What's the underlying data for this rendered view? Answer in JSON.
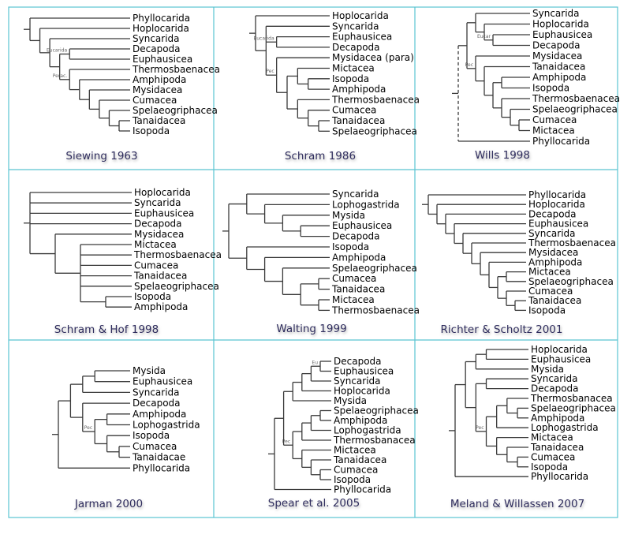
{
  "panels": [
    {
      "caption": "Siewing 1963",
      "tree": [
        "Phyllocarida",
        [
          "Hoplocarida",
          [
            "Syncarida",
            [
              {
                "label": "Eucarida",
                "children": [
                  "Decapoda",
                  "Euphausicea"
                ]
              },
              {
                "label": "Perac.",
                "children": [
                  "Thermosbaenacea",
                  [
                    "Amphipoda",
                    [
                      "Mysidacea",
                      [
                        "Cumacea",
                        [
                          "Spelaeogriphacea",
                          [
                            "Tanaidacea",
                            "Isopoda"
                          ]
                        ]
                      ]
                    ]
                  ]
                ]
              }
            ]
          ]
        ]
      ]
    },
    {
      "caption": "Schram 1986",
      "tree": [
        "Hoplocarida",
        [
          "Syncarida",
          {
            "label": "Eucarida",
            "children": [
              "Euphausicea",
              "Decapoda"
            ]
          },
          {
            "label": "Pec",
            "children": [
              "Mysidacea (para)",
              [
                [
                  "Mictacea",
                  [
                    "Isopoda",
                    "Amphipoda"
                  ]
                ],
                [
                  "Thermosbaenacea",
                  [
                    "Cumacea",
                    [
                      "Tanaidacea",
                      "Spelaeogriphacea"
                    ]
                  ]
                ]
              ]
            ]
          }
        ]
      ]
    },
    {
      "caption": "Wills 1998",
      "tree": [
        [
          [
            "Syncarida",
            [
              "Hoplocarida",
              {
                "label": "Eucar",
                "children": [
                  "Euphausicea",
                  "Decapoda"
                ]
              }
            ]
          ],
          {
            "label": "Pec",
            "children": [
              "Mysidacea",
              [
                "Tanaidacea",
                [
                  [
                    "Amphipoda",
                    "Isopoda"
                  ],
                  [
                    "Thermosbaenacea",
                    [
                      "Spelaeogriphacea",
                      [
                        "Cumacea",
                        "Mictacea"
                      ]
                    ]
                  ]
                ]
              ]
            ]
          }
        ],
        {
          "name": "Phyllocarida",
          "dashed": true
        }
      ]
    },
    {
      "caption": "Schram & Hof 1998",
      "tree": [
        "Hoplocarida",
        "Syncarida",
        "Euphausicea",
        "Decapoda",
        [
          "Mysidacea",
          [
            "Mictacea",
            "Thermosbaenacea",
            "Cumacea",
            "Tanaidacea",
            "Spelaeogriphacea",
            [
              "Isopoda",
              "Amphipoda"
            ]
          ]
        ]
      ]
    },
    {
      "caption": "Walting 1999",
      "tree": [
        [
          "Syncarida",
          [
            "Lophogastrida",
            [
              "Mysida",
              [
                "Euphausicea",
                "Decapoda"
              ]
            ]
          ]
        ],
        [
          "Isopoda",
          [
            "Amphipoda",
            [
              "Spelaeogriphacea",
              [
                [
                  "Cumacea",
                  "Tanaidacea"
                ],
                [
                  "Mictacea",
                  "Thermosbaenacea"
                ]
              ]
            ]
          ]
        ]
      ]
    },
    {
      "caption": "Richter & Scholtz 2001",
      "tree": [
        "Phyllocarida",
        [
          "Hoplocarida",
          [
            "Decapoda",
            [
              "Euphausicea",
              [
                "Syncarida",
                [
                  "Thermosbaenacea",
                  [
                    "Mysidacea",
                    [
                      "Amphipoda",
                      [
                        [
                          "Mictacea",
                          "Spelaeogriphacea"
                        ],
                        [
                          "Cumacea",
                          [
                            "Tanaidacea",
                            "Isopoda"
                          ]
                        ]
                      ]
                    ]
                  ]
                ]
              ]
            ]
          ]
        ]
      ]
    },
    {
      "caption": "Jarman 2000",
      "tree": [
        [
          [
            [
              "Mysida",
              "Euphausicea"
            ],
            "Syncarida"
          ],
          [
            "Decapoda",
            {
              "label": "Pec",
              "children": [
                [
                  "Amphipoda",
                  "Lophogastrida"
                ],
                [
                  "Isopoda",
                  [
                    "Cumacea",
                    "Tanaidacae"
                  ]
                ]
              ]
            }
          ]
        ],
        "Phyllocarida"
      ]
    },
    {
      "caption": "Spear et al. 2005",
      "tree": [
        [
          [
            [
              [
                {
                  "label": "Eu",
                  "children": [
                    "Decapoda",
                    "Euphausicea"
                  ]
                },
                "Syncarida"
              ],
              "Hoplocarida"
            ],
            "Mysida"
          ],
          {
            "label": "Pec",
            "children": [
              [
                [
                  [
                    "Spelaeogriphacea",
                    "Amphipoda"
                  ],
                  "Lophogastrida"
                ],
                "Thermosbanacea"
              ],
              [
                "Mictacea",
                [
                  "Tanaidacea",
                  [
                    "Cumacea",
                    "Isopoda"
                  ]
                ]
              ]
            ]
          }
        ],
        "Phyllocarida"
      ]
    },
    {
      "caption": "Meland & Willassen 2007",
      "tree": [
        [
          [
            [
              "Hoplocarida",
              "Euphausicea"
            ],
            "Mysida"
          ],
          [
            [
              "Syncarida",
              "Decapoda"
            ],
            {
              "label": "Pec",
              "children": [
                [
                  [
                    "Thermosbanacea",
                    [
                      "Spelaeogriphacea",
                      "Amphipoda"
                    ]
                  ],
                  "Lophogastrida"
                ],
                [
                  "Mictacea",
                  [
                    "Tanaidacea",
                    [
                      "Cumacea",
                      "Isopoda"
                    ]
                  ]
                ]
              ]
            }
          ]
        ],
        "Phyllocarida"
      ]
    }
  ],
  "colors": {
    "frame": "#5bc4d1",
    "branch": "#3a3a3a",
    "caption": "#2f2d5e"
  }
}
